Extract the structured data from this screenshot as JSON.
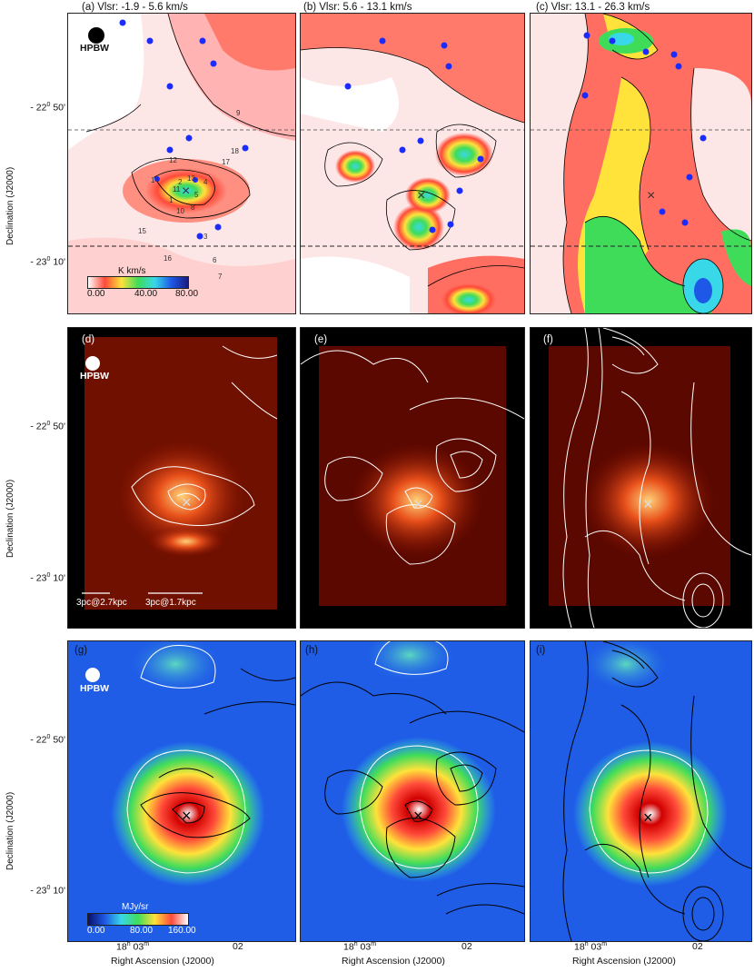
{
  "panels": {
    "a": {
      "title": "(a) Vlsr: -1.9 - 5.6 km/s"
    },
    "b": {
      "title": "(b) Vlsr: 5.6 - 13.1 km/s"
    },
    "c": {
      "title": "(c) Vlsr: 13.1 - 26.3 km/s"
    },
    "d": {
      "title": "(d)"
    },
    "e": {
      "title": "(e)"
    },
    "f": {
      "title": "(f)"
    },
    "g": {
      "title": "(g)"
    },
    "h": {
      "title": "(h)"
    },
    "i": {
      "title": "(i)"
    }
  },
  "hpbw_label": "HPBW",
  "y_axis": {
    "label": "Declination (J2000)",
    "tick_50": "- 22",
    "tick_50_deg": "0",
    "tick_50_min": "50'",
    "tick_10": "- 23",
    "tick_10_deg": "0",
    "tick_10_min": "10'"
  },
  "x_axis": {
    "label": "Right Ascension (J2000)",
    "tick_left_h": "18",
    "tick_left_hs": "h",
    "tick_left_m": "03",
    "tick_left_ms": "m",
    "tick_right": "02"
  },
  "colorbar_top": {
    "unit": "K km/s",
    "ticks": [
      "0.00",
      "40.00",
      "80.00"
    ]
  },
  "colorbar_bottom": {
    "unit": "MJy/sr",
    "ticks": [
      "0.00",
      "80.00",
      "160.00"
    ]
  },
  "scalebars": {
    "left": "3pc@2.7kpc",
    "right": "3pc@1.7kpc"
  },
  "source_labels": [
    "1",
    "2",
    "3",
    "4",
    "5",
    "6",
    "7",
    "8",
    "9",
    "10",
    "11",
    "12",
    "13",
    "14",
    "15",
    "16",
    "17",
    "18"
  ],
  "colors": {
    "red_map": "#ff4a3a",
    "pink_bg": "#fde6e6",
    "yellow": "#ffe23a",
    "green": "#3fdc5a",
    "cyan": "#38d8e8",
    "blue_map": "#1e58e6",
    "dots": "#1a2cff"
  }
}
